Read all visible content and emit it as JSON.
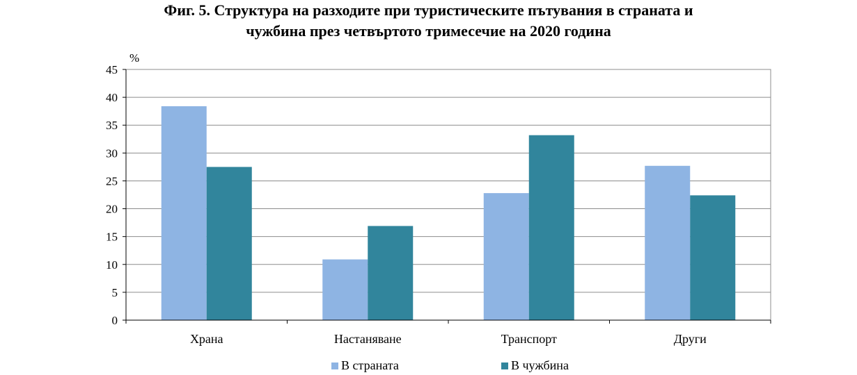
{
  "title": {
    "line1": "Фиг. 5. Структура на разходите при туристическите пътувания в страната и",
    "line2": "чужбина през четвъртото тримесечие на 2020 година"
  },
  "chart_data": {
    "type": "bar",
    "ylabel": "%",
    "ylim": [
      0,
      45
    ],
    "yticks": [
      0,
      5,
      10,
      15,
      20,
      25,
      30,
      35,
      40,
      45
    ],
    "grid": true,
    "legend_position": "bottom",
    "categories": [
      "Храна",
      "Настаняване",
      "Транспорт",
      "Други"
    ],
    "series": [
      {
        "name": "В страната",
        "color": "#8EB4E3",
        "values": [
          38.4,
          10.9,
          22.8,
          27.7
        ]
      },
      {
        "name": "В чужбина",
        "color": "#31859C",
        "values": [
          27.5,
          16.9,
          33.2,
          22.4
        ]
      }
    ]
  }
}
